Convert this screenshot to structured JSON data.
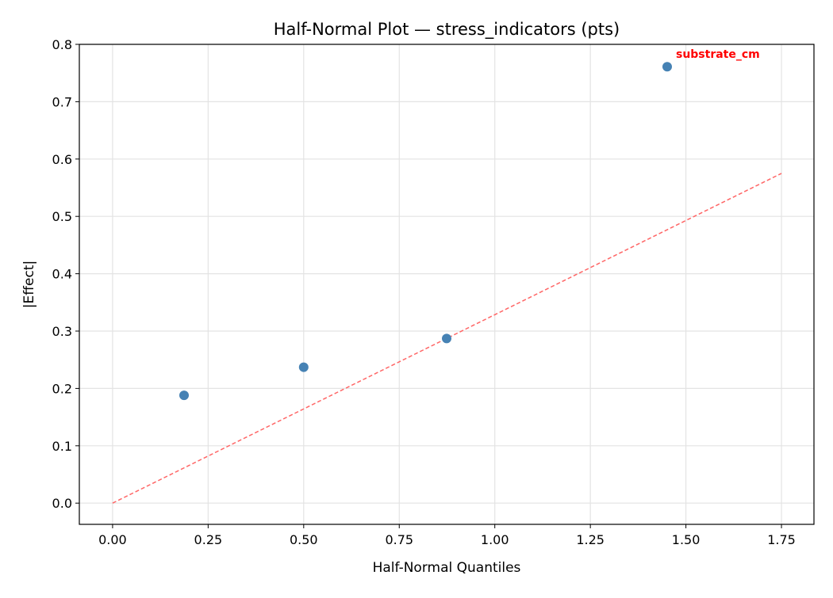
{
  "chart_data": {
    "type": "scatter",
    "title": "Half-Normal Plot — stress_indicators (pts)",
    "xlabel": "Half-Normal Quantiles",
    "ylabel": "|Effect|",
    "xlim": [
      -0.087,
      1.835
    ],
    "ylim": [
      -0.037,
      0.8
    ],
    "xticks": [
      "0.00",
      "0.25",
      "0.50",
      "0.75",
      "1.00",
      "1.25",
      "1.50",
      "1.75"
    ],
    "yticks": [
      "0.0",
      "0.1",
      "0.2",
      "0.3",
      "0.4",
      "0.5",
      "0.6",
      "0.7",
      "0.8"
    ],
    "grid": true,
    "points": [
      {
        "x": 0.187,
        "y": 0.188
      },
      {
        "x": 0.5,
        "y": 0.237
      },
      {
        "x": 0.874,
        "y": 0.287
      },
      {
        "x": 1.451,
        "y": 0.761,
        "label": "substrate_cm"
      }
    ],
    "reference_line": {
      "x": [
        0,
        1.75
      ],
      "y": [
        0,
        0.575
      ],
      "style": "dashed"
    },
    "colors": {
      "point": "#4682b4",
      "line": "#ff6666",
      "label": "#ff0000"
    }
  }
}
